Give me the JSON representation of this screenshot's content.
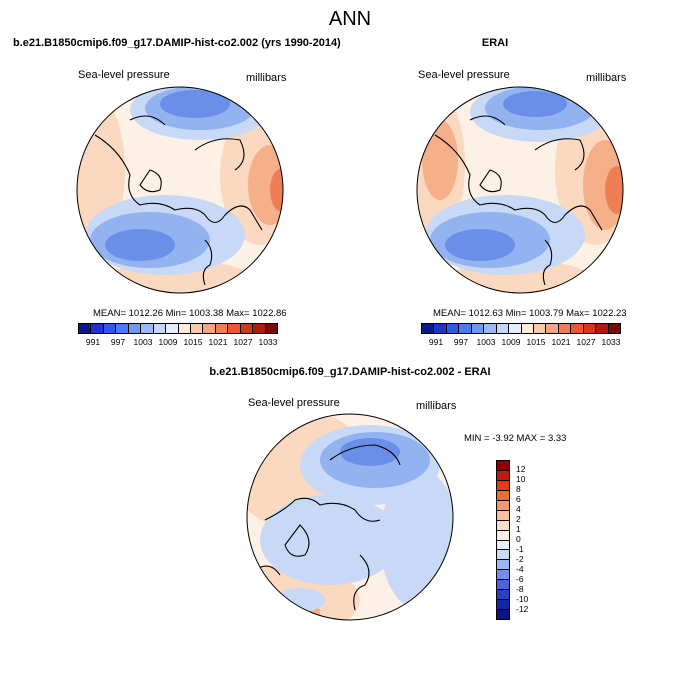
{
  "title": "ANN",
  "panels": [
    {
      "title": "b.e21.B1850cmip6.f09_g17.DAMIP-hist-co2.002 (yrs 1990-2014)",
      "variable": "Sea-level pressure",
      "units": "millibars",
      "stats": "MEAN= 1012.26   Min= 1003.38   Max= 1022.86"
    },
    {
      "title": "ERAI",
      "variable": "Sea-level pressure",
      "units": "millibars",
      "stats": "MEAN= 1012.63   Min= 1003.79   Max= 1022.23"
    },
    {
      "title": "b.e21.B1850cmip6.f09_g17.DAMIP-hist-co2.002 - ERAI",
      "variable": "Sea-level pressure",
      "units": "millibars",
      "stats": "MIN =  -3.92 MAX =    3.33"
    }
  ],
  "colorbar_main": {
    "tick_labels": [
      "991",
      "997",
      "1003",
      "1009",
      "1015",
      "1021",
      "1027",
      "1033"
    ],
    "colors": [
      "#0b1a8a",
      "#1f35c6",
      "#2f5be2",
      "#4a7bf0",
      "#6f98f2",
      "#9cb8f4",
      "#c4d7f8",
      "#e4eefc",
      "#fdecd8",
      "#f9c9a8",
      "#f4a481",
      "#ef7e58",
      "#e45a33",
      "#cf3a1a",
      "#a8200d",
      "#7a0a04"
    ]
  },
  "colorbar_diff": {
    "tick_labels": [
      "12",
      "10",
      "8",
      "6",
      "4",
      "2",
      "1",
      "0",
      "-1",
      "-2",
      "-4",
      "-6",
      "-8",
      "-10",
      "-12"
    ],
    "colors": [
      "#8b0000",
      "#c11b0b",
      "#e23c14",
      "#ef6a3a",
      "#f39870",
      "#f8bfa1",
      "#fbdcc8",
      "#fdf1e6",
      "#eaf1fb",
      "#c9dbf6",
      "#9cb8f0",
      "#6f8fe8",
      "#4766db",
      "#2a3fc8",
      "#1424a8",
      "#0a1585"
    ]
  },
  "map_colors": {
    "deep_low": "#6a8fe8",
    "low": "#93b2f0",
    "light_low": "#c7d9f7",
    "neutral": "#fdf1e5",
    "light_high": "#fbd9c0",
    "high": "#f5b08a",
    "strong_high": "#ee7f55"
  }
}
